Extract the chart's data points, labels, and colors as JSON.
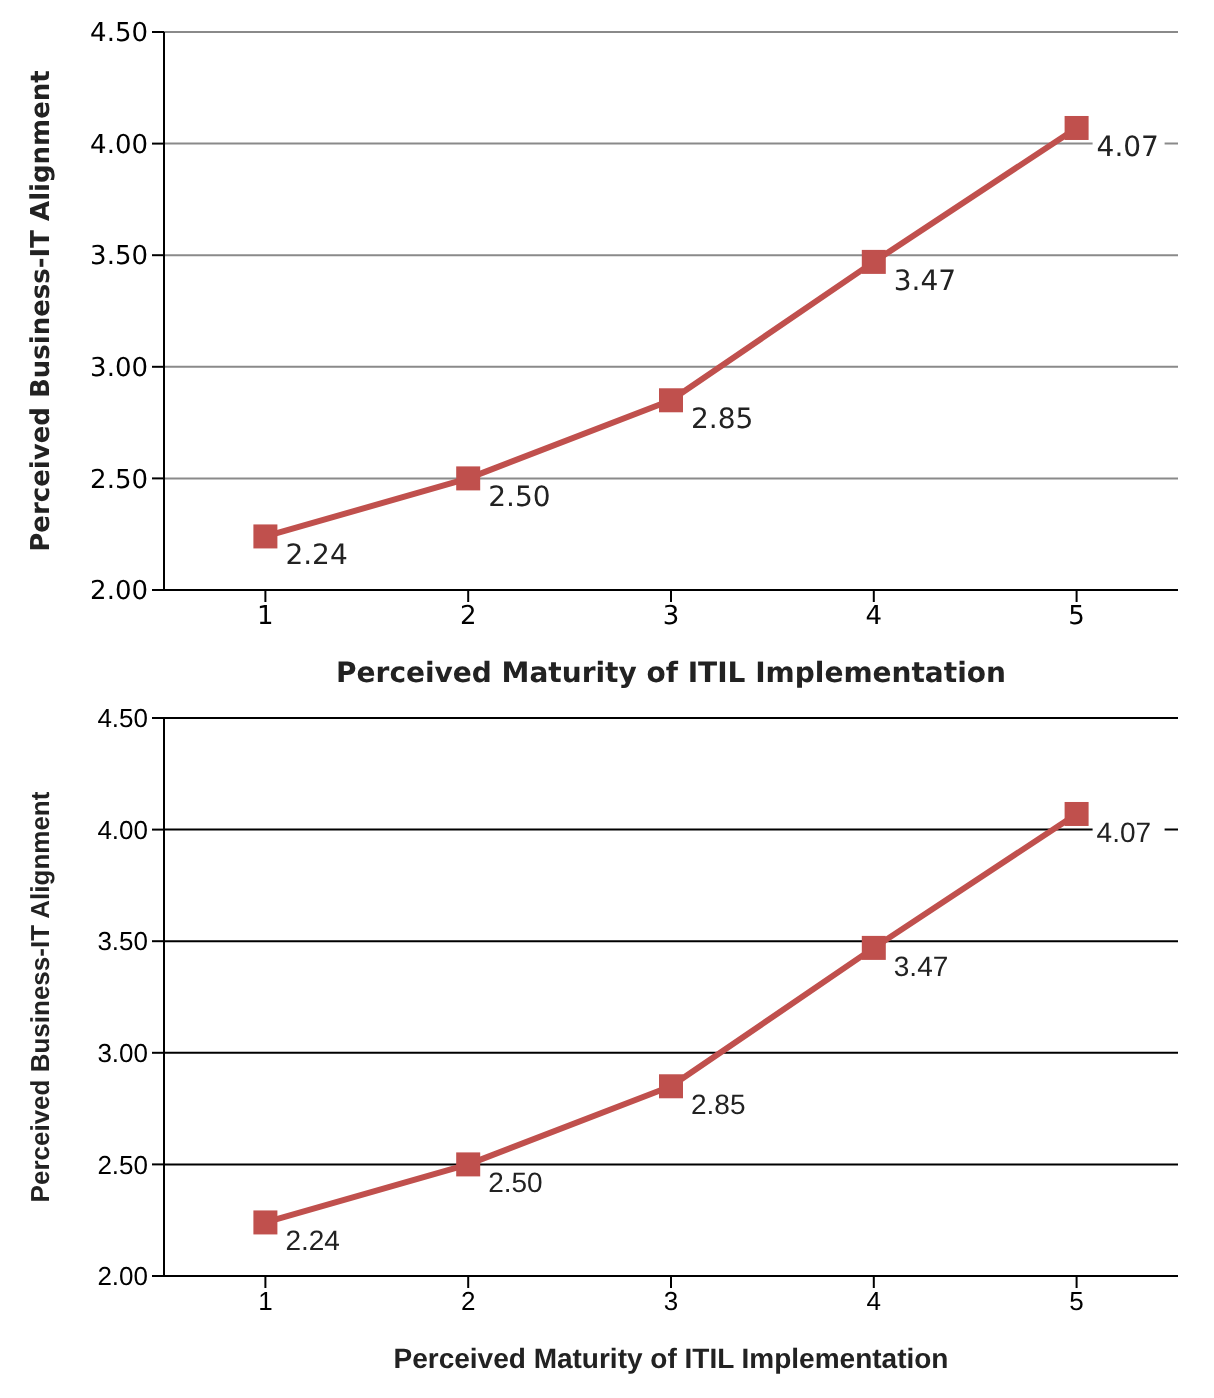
{
  "chart_data": [
    {
      "type": "line",
      "xlabel": "Perceived Maturity of ITIL Implementation",
      "ylabel": "Perceived Business-IT Alignment",
      "categories": [
        "1",
        "2",
        "3",
        "4",
        "5"
      ],
      "series": [
        {
          "color": "#c0504d",
          "values": [
            2.24,
            2.5,
            2.85,
            3.47,
            4.07
          ]
        }
      ],
      "value_labels": [
        "2.24",
        "2.50",
        "2.85",
        "3.47",
        "4.07"
      ],
      "ylim": [
        2,
        4.5
      ],
      "yticks": [
        {
          "value": 2,
          "label": "2.00"
        },
        {
          "value": 2.5,
          "label": "2.50"
        },
        {
          "value": 3,
          "label": "3.00"
        },
        {
          "value": 3.5,
          "label": "3.50"
        },
        {
          "value": 4,
          "label": "4.00"
        },
        {
          "value": 4.5,
          "label": "4.50"
        }
      ],
      "grid": "y",
      "marker": "square",
      "legend": false
    },
    {
      "type": "line",
      "xlabel": "Perceived Maturity of ITIL Implementation",
      "ylabel": "Perceived Business-IT Alignment",
      "categories": [
        "1",
        "2",
        "3",
        "4",
        "5"
      ],
      "series": [
        {
          "color": "#c0504d",
          "values": [
            2.24,
            2.5,
            2.85,
            3.47,
            4.07
          ]
        }
      ],
      "value_labels": [
        "2.24",
        "2.50",
        "2.85",
        "3.47",
        "4.07"
      ],
      "ylim": [
        2,
        4.5
      ],
      "yticks": [
        {
          "value": 2,
          "label": "2.00"
        },
        {
          "value": 2.5,
          "label": "2.50"
        },
        {
          "value": 3,
          "label": "3.00"
        },
        {
          "value": 3.5,
          "label": "3.50"
        },
        {
          "value": 4,
          "label": "4.00"
        },
        {
          "value": 4.5,
          "label": "4.50"
        }
      ],
      "grid": "y",
      "marker": "square",
      "legend": false
    }
  ]
}
